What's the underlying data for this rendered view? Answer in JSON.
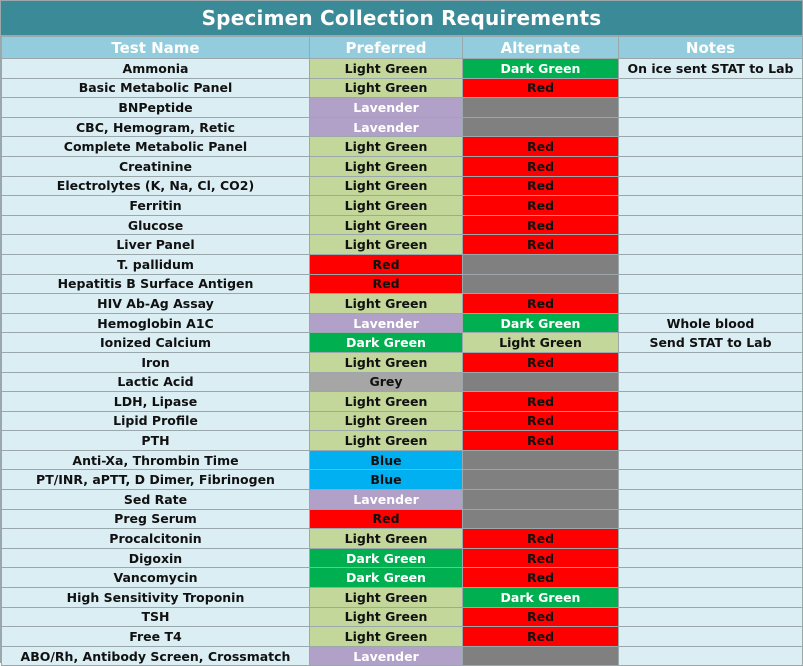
{
  "title": "Specimen Collection Requirements",
  "headers": {
    "test_name": "Test Name",
    "preferred": "Preferred",
    "alternate": "Alternate",
    "notes": "Notes"
  },
  "colors": {
    "Light Green": "#c4d79b",
    "Dark Green": "#00b050",
    "Red": "#ff0000",
    "Lavender": "#b1a0c7",
    "Grey": "#a6a6a6",
    "Blue": "#00b0f0",
    "empty": "#808080"
  },
  "rows": [
    {
      "test": "Ammonia",
      "preferred": "Light Green",
      "alternate": "Dark Green",
      "notes": "On ice sent STAT to Lab"
    },
    {
      "test": "Basic Metabolic Panel",
      "preferred": "Light Green",
      "alternate": "Red",
      "notes": ""
    },
    {
      "test": "BNPeptide",
      "preferred": "Lavender",
      "alternate": "",
      "notes": ""
    },
    {
      "test": "CBC, Hemogram, Retic",
      "preferred": "Lavender",
      "alternate": "",
      "notes": ""
    },
    {
      "test": "Complete Metabolic Panel",
      "preferred": "Light Green",
      "alternate": "Red",
      "notes": ""
    },
    {
      "test": "Creatinine",
      "preferred": "Light Green",
      "alternate": "Red",
      "notes": ""
    },
    {
      "test": "Electrolytes (K, Na, Cl, CO2)",
      "preferred": "Light Green",
      "alternate": "Red",
      "notes": ""
    },
    {
      "test": "Ferritin",
      "preferred": "Light Green",
      "alternate": "Red",
      "notes": ""
    },
    {
      "test": "Glucose",
      "preferred": "Light Green",
      "alternate": "Red",
      "notes": ""
    },
    {
      "test": "Liver Panel",
      "preferred": "Light Green",
      "alternate": "Red",
      "notes": ""
    },
    {
      "test": "T. pallidum",
      "preferred": "Red",
      "alternate": "",
      "notes": ""
    },
    {
      "test": "Hepatitis B Surface Antigen",
      "preferred": "Red",
      "alternate": "",
      "notes": ""
    },
    {
      "test": "HIV Ab-Ag Assay",
      "preferred": "Light Green",
      "alternate": "Red",
      "notes": ""
    },
    {
      "test": "Hemoglobin A1C",
      "preferred": "Lavender",
      "alternate": "Dark Green",
      "notes": "Whole blood"
    },
    {
      "test": "Ionized Calcium",
      "preferred": "Dark Green",
      "alternate": "Light Green",
      "notes": "Send STAT to Lab"
    },
    {
      "test": "Iron",
      "preferred": "Light Green",
      "alternate": "Red",
      "notes": ""
    },
    {
      "test": "Lactic Acid",
      "preferred": "Grey",
      "alternate": "",
      "notes": ""
    },
    {
      "test": "LDH, Lipase",
      "preferred": "Light Green",
      "alternate": "Red",
      "notes": ""
    },
    {
      "test": "Lipid Profile",
      "preferred": "Light Green",
      "alternate": "Red",
      "notes": ""
    },
    {
      "test": "PTH",
      "preferred": "Light Green",
      "alternate": "Red",
      "notes": ""
    },
    {
      "test": "Anti-Xa, Thrombin Time",
      "preferred": "Blue",
      "alternate": "",
      "notes": ""
    },
    {
      "test": "PT/INR, aPTT, D Dimer, Fibrinogen",
      "preferred": "Blue",
      "alternate": "",
      "notes": ""
    },
    {
      "test": "Sed Rate",
      "preferred": "Lavender",
      "alternate": "",
      "notes": ""
    },
    {
      "test": "Preg Serum",
      "preferred": "Red",
      "alternate": "",
      "notes": ""
    },
    {
      "test": "Procalcitonin",
      "preferred": "Light Green",
      "alternate": "Red",
      "notes": ""
    },
    {
      "test": "Digoxin",
      "preferred": "Dark Green",
      "alternate": "Red",
      "notes": ""
    },
    {
      "test": "Vancomycin",
      "preferred": "Dark Green",
      "alternate": "Red",
      "notes": ""
    },
    {
      "test": "High Sensitivity Troponin",
      "preferred": "Light Green",
      "alternate": "Dark Green",
      "notes": ""
    },
    {
      "test": "TSH",
      "preferred": "Light Green",
      "alternate": "Red",
      "notes": ""
    },
    {
      "test": "Free T4",
      "preferred": "Light Green",
      "alternate": "Red",
      "notes": ""
    },
    {
      "test": "ABO/Rh, Antibody Screen, Crossmatch",
      "preferred": "Lavender",
      "alternate": "",
      "notes": ""
    }
  ]
}
